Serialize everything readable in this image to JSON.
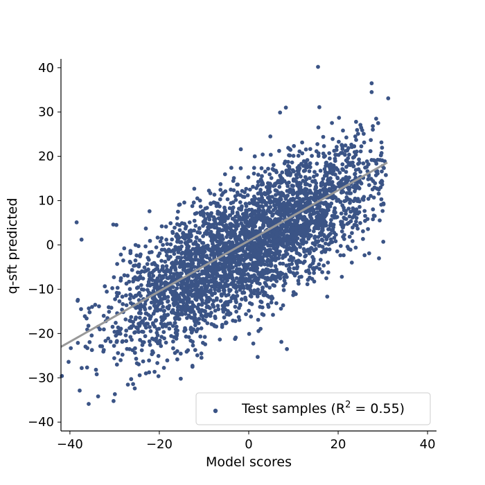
{
  "chart_data": {
    "type": "scatter",
    "title": "",
    "xlabel": "Model scores",
    "ylabel": "q-sft predicted",
    "xlim": [
      -42,
      42
    ],
    "ylim": [
      -42,
      42
    ],
    "x_ticks": [
      -40,
      -20,
      0,
      20,
      40
    ],
    "y_ticks": [
      -40,
      -30,
      -20,
      -10,
      0,
      10,
      20,
      30,
      40
    ],
    "x_tick_labels": [
      "−40",
      "−20",
      "0",
      "20",
      "40"
    ],
    "y_tick_labels": [
      "−40",
      "−30",
      "−20",
      "−10",
      "0",
      "10",
      "20",
      "30",
      "40"
    ],
    "grid": false,
    "legend_position": "lower right",
    "series": [
      {
        "name_prefix": "Test samples (R",
        "name_superscript": "2",
        "name_suffix": " = 0.55)",
        "marker": "circle",
        "color": "#3b5486",
        "point_cloud": {
          "center": [
            0,
            0
          ],
          "x_range": [
            -42,
            31
          ],
          "y_range": [
            -36,
            40
          ],
          "correlation": 0.74,
          "approx_count": 3500
        },
        "outliers": [
          [
            15.5,
            40.2
          ],
          [
            27.5,
            36.5
          ],
          [
            27.5,
            34.5
          ],
          [
            31.2,
            33.1
          ],
          [
            8.3,
            31.0
          ],
          [
            7.0,
            29.9
          ],
          [
            15.8,
            31.1
          ],
          [
            20.2,
            28.7
          ],
          [
            24.0,
            27.8
          ],
          [
            28.5,
            28.5
          ],
          [
            -38.5,
            5.1
          ],
          [
            -37.4,
            1.2
          ],
          [
            -30.3,
            4.6
          ],
          [
            -29.6,
            4.5
          ],
          [
            -41.8,
            -29.6
          ],
          [
            -35.8,
            -35.9
          ],
          [
            -33.7,
            -34.2
          ],
          [
            -40.3,
            -26.4
          ],
          [
            -26.3,
            -30.3
          ],
          [
            -25.5,
            -32.4
          ],
          [
            -15.2,
            -30.2
          ],
          [
            2.0,
            -25.3
          ],
          [
            -39.8,
            -23.3
          ],
          [
            -34.0,
            -29.2
          ],
          [
            -23.0,
            -29.0
          ]
        ]
      },
      {
        "name": "",
        "type": "line",
        "color": "#999999",
        "x": [
          -42,
          31
        ],
        "y": [
          -23.0,
          18.6
        ]
      }
    ]
  }
}
